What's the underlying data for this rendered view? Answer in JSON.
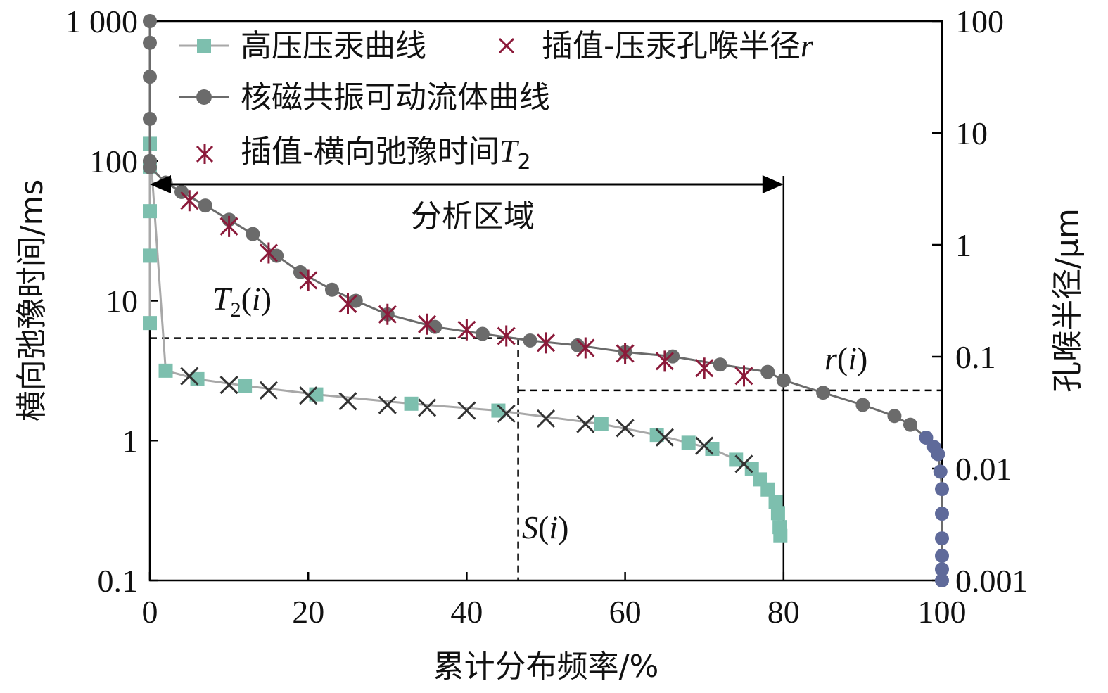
{
  "chart_data": {
    "type": "line",
    "xlabel": "累计分布频率/%",
    "ylabel_left": "横向弛豫时间/ms",
    "ylabel_right": "孔喉半径/μm",
    "x_range": [
      0,
      100
    ],
    "y_left_range": [
      0.1,
      1000
    ],
    "y_left_scale": "log",
    "y_right_range": [
      0.001,
      100
    ],
    "y_right_scale": "log",
    "x_ticks": [
      "0",
      "20",
      "40",
      "60",
      "80",
      "100"
    ],
    "y_left_ticks": [
      "0.1",
      "1",
      "10",
      "100",
      "1 000"
    ],
    "y_right_ticks": [
      "0.001",
      "0.01",
      "0.1",
      "1",
      "10",
      "100"
    ],
    "series": [
      {
        "name": "高压压汞曲线",
        "axis": "right",
        "marker": "square",
        "color": "#7dbfae",
        "points": [
          [
            0,
            0.2
          ],
          [
            0,
            0.8
          ],
          [
            0,
            2
          ],
          [
            0,
            5
          ],
          [
            0,
            8
          ],
          [
            2,
            0.075
          ],
          [
            6,
            0.063
          ],
          [
            12,
            0.055
          ],
          [
            21,
            0.046
          ],
          [
            33,
            0.038
          ],
          [
            44,
            0.033
          ],
          [
            57,
            0.025
          ],
          [
            64,
            0.02
          ],
          [
            68,
            0.017
          ],
          [
            71,
            0.015
          ],
          [
            74,
            0.012
          ],
          [
            76,
            0.01
          ],
          [
            77,
            0.008
          ],
          [
            78,
            0.0065
          ],
          [
            79,
            0.005
          ],
          [
            79.3,
            0.004
          ],
          [
            79.5,
            0.003
          ],
          [
            79.6,
            0.0025
          ]
        ]
      },
      {
        "name": "插值-压汞孔喉半径",
        "axis": "right",
        "marker": "x",
        "color": "#333333",
        "points": [
          [
            5,
            0.067
          ],
          [
            10,
            0.056
          ],
          [
            15,
            0.05
          ],
          [
            20,
            0.045
          ],
          [
            25,
            0.04
          ],
          [
            30,
            0.037
          ],
          [
            35,
            0.035
          ],
          [
            40,
            0.033
          ],
          [
            45,
            0.031
          ],
          [
            50,
            0.028
          ],
          [
            55,
            0.025
          ],
          [
            60,
            0.023
          ],
          [
            65,
            0.019
          ],
          [
            70,
            0.016
          ],
          [
            75,
            0.011
          ]
        ]
      },
      {
        "name": "核磁共振可动流体曲线",
        "axis": "left",
        "marker": "circle",
        "color": "#6b6b6b",
        "points": [
          [
            0,
            1000
          ],
          [
            0,
            700
          ],
          [
            0,
            400
          ],
          [
            0,
            200
          ],
          [
            0,
            100
          ],
          [
            0,
            90
          ],
          [
            2,
            70
          ],
          [
            4,
            60
          ],
          [
            7,
            48
          ],
          [
            10,
            38
          ],
          [
            13,
            30
          ],
          [
            16,
            21
          ],
          [
            19,
            16
          ],
          [
            23,
            12
          ],
          [
            26,
            10
          ],
          [
            30,
            8
          ],
          [
            36,
            6.5
          ],
          [
            42,
            5.8
          ],
          [
            48,
            5.2
          ],
          [
            54,
            4.8
          ],
          [
            60,
            4.3
          ],
          [
            66,
            4
          ],
          [
            72,
            3.5
          ],
          [
            78,
            3.1
          ],
          [
            80,
            2.7
          ],
          [
            85,
            2.2
          ],
          [
            90,
            1.8
          ],
          [
            94,
            1.5
          ],
          [
            96,
            1.3
          ],
          [
            98,
            1.05
          ],
          [
            99,
            0.9
          ],
          [
            99.5,
            0.8
          ],
          [
            99.8,
            0.6
          ],
          [
            100,
            0.45
          ],
          [
            100,
            0.3
          ],
          [
            100,
            0.2
          ],
          [
            100,
            0.15
          ],
          [
            100,
            0.12
          ],
          [
            100,
            0.1
          ]
        ]
      },
      {
        "name": "插值-横向弛豫时间",
        "axis": "left",
        "marker": "asterisk",
        "color": "#8b1a3a",
        "points": [
          [
            5,
            52
          ],
          [
            10,
            34
          ],
          [
            15,
            22
          ],
          [
            20,
            14
          ],
          [
            25,
            9.5
          ],
          [
            30,
            8
          ],
          [
            35,
            6.8
          ],
          [
            40,
            6.2
          ],
          [
            45,
            5.6
          ],
          [
            50,
            5
          ],
          [
            55,
            4.6
          ],
          [
            60,
            4.2
          ],
          [
            65,
            3.7
          ],
          [
            70,
            3.3
          ],
          [
            75,
            2.9
          ]
        ]
      }
    ],
    "annotations": {
      "region_label": "分析区域",
      "region_x": [
        0,
        80
      ],
      "t2_label": "T2(i)",
      "s_label": "S(i)",
      "r_label": "r(i)",
      "guide_t2_value": 5.4,
      "guide_s_value": 46.5,
      "guide_r_value": 0.05
    },
    "legend_position": "top-left",
    "grid": false
  },
  "legend": {
    "items": [
      {
        "label": "高压压汞曲线"
      },
      {
        "label": "插值-压汞孔喉半径",
        "var": "r"
      },
      {
        "label": "核磁共振可动流体曲线"
      },
      {
        "label": "插值-横向弛豫时间",
        "var": "T",
        "sub": "2"
      }
    ]
  },
  "colors": {
    "hg_curve": "#7dbfae",
    "hg_line": "#a8a8a8",
    "nmr_curve": "#6b6b6b",
    "nmr_tail": "#5f6a9a",
    "interp_r": "#333333",
    "interp_t2": "#8b1a3a",
    "frame": "#000000"
  }
}
